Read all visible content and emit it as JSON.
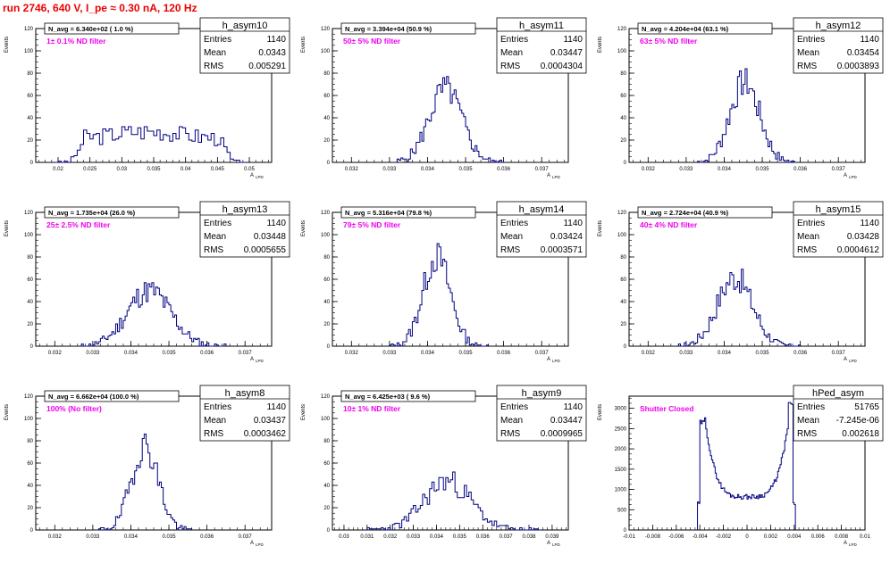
{
  "title": "run 2746,   640 V, I_pe ≈ 0.30 nA, 120 Hz",
  "y_axis_label": "Events",
  "x_axis_label": "A",
  "x_axis_label_sub": "LPD",
  "stats_labels": {
    "entries": "Entries",
    "mean": "Mean",
    "rms": "RMS"
  },
  "colors": {
    "histogram": "#000080",
    "annotation": "#ee00ee",
    "title": "#ee0000",
    "frame": "#000000"
  },
  "chart_data": [
    {
      "type": "bar",
      "name": "h_asym10",
      "n_avg": "N_avg = 6.340e+02 ( 1.0 %)",
      "filter": "1± 0.1% ND filter",
      "entries": "1140",
      "mean": "0.0343",
      "rms": "0.005291",
      "xlim": [
        0.0165,
        0.0535
      ],
      "ylim": [
        0,
        120
      ],
      "yticks": [
        0,
        20,
        40,
        60,
        80,
        100,
        120
      ],
      "xticks": [
        0.02,
        0.025,
        0.03,
        0.035,
        0.04,
        0.045,
        0.05
      ],
      "xtick_labels": [
        "0.02",
        "0.025",
        "0.03",
        "0.035",
        "0.04",
        "0.045",
        "0.05"
      ],
      "bins": {
        "x0": 0.0195,
        "x1": 0.0495,
        "step": 0.0005,
        "shape": "flat",
        "mu": 0.0343,
        "sigma": 0.0053,
        "peak": 28,
        "lo": 0.024,
        "hi": 0.0455,
        "seed": 3
      }
    },
    {
      "type": "bar",
      "name": "h_asym11",
      "n_avg": "N_avg = 3.394e+04 (50.9 %)",
      "filter": "50± 5% ND filter",
      "entries": "1140",
      "mean": "0.03447",
      "rms": "0.0004304",
      "xlim": [
        0.0315,
        0.0377
      ],
      "ylim": [
        0,
        120
      ],
      "yticks": [
        0,
        20,
        40,
        60,
        80,
        100,
        120
      ],
      "xticks": [
        0.032,
        0.033,
        0.034,
        0.035,
        0.036,
        0.037
      ],
      "xtick_labels": [
        "0.032",
        "0.033",
        "0.034",
        "0.035",
        "0.036",
        "0.037"
      ],
      "bins": {
        "x0": 0.0332,
        "x1": 0.036,
        "step": 5e-05,
        "shape": "gauss",
        "mu": 0.03447,
        "sigma": 0.00043,
        "peak": 66,
        "seed": 5
      }
    },
    {
      "type": "bar",
      "name": "h_asym12",
      "n_avg": "N_avg = 4.204e+04 (63.1 %)",
      "filter": "63± 5% ND filter",
      "entries": "1140",
      "mean": "0.03454",
      "rms": "0.0003893",
      "xlim": [
        0.0315,
        0.0377
      ],
      "ylim": [
        0,
        120
      ],
      "yticks": [
        0,
        20,
        40,
        60,
        80,
        100,
        120
      ],
      "xticks": [
        0.032,
        0.033,
        0.034,
        0.035,
        0.036,
        0.037
      ],
      "xtick_labels": [
        "0.032",
        "0.033",
        "0.034",
        "0.035",
        "0.036",
        "0.037"
      ],
      "bins": {
        "x0": 0.0333,
        "x1": 0.0359,
        "step": 5e-05,
        "shape": "gauss",
        "mu": 0.03454,
        "sigma": 0.00039,
        "peak": 72,
        "seed": 7
      }
    },
    {
      "type": "bar",
      "name": "h_asym13",
      "n_avg": "N_avg = 1.735e+04 (26.0 %)",
      "filter": "25± 2.5% ND filter",
      "entries": "1140",
      "mean": "0.03448",
      "rms": "0.0005655",
      "xlim": [
        0.0315,
        0.0377
      ],
      "ylim": [
        0,
        120
      ],
      "yticks": [
        0,
        20,
        40,
        60,
        80,
        100,
        120
      ],
      "xticks": [
        0.032,
        0.033,
        0.034,
        0.035,
        0.036,
        0.037
      ],
      "xtick_labels": [
        "0.032",
        "0.033",
        "0.034",
        "0.035",
        "0.036",
        "0.037"
      ],
      "bins": {
        "x0": 0.0327,
        "x1": 0.0365,
        "step": 5e-05,
        "shape": "gauss",
        "mu": 0.03448,
        "sigma": 0.00057,
        "peak": 50,
        "seed": 11
      }
    },
    {
      "type": "bar",
      "name": "h_asym14",
      "n_avg": "N_avg = 5.316e+04 (79.8 %)",
      "filter": "79± 5% ND filter",
      "entries": "1140",
      "mean": "0.03424",
      "rms": "0.0003571",
      "xlim": [
        0.0315,
        0.0377
      ],
      "ylim": [
        0,
        120
      ],
      "yticks": [
        0,
        20,
        40,
        60,
        80,
        100,
        120
      ],
      "xticks": [
        0.032,
        0.033,
        0.034,
        0.035,
        0.036,
        0.037
      ],
      "xtick_labels": [
        "0.032",
        "0.033",
        "0.034",
        "0.035",
        "0.036",
        "0.037"
      ],
      "bins": {
        "x0": 0.033,
        "x1": 0.0356,
        "step": 5e-05,
        "shape": "gauss",
        "mu": 0.03424,
        "sigma": 0.00036,
        "peak": 80,
        "seed": 13
      }
    },
    {
      "type": "bar",
      "name": "h_asym15",
      "n_avg": "N_avg = 2.724e+04 (40.9 %)",
      "filter": "40± 4% ND filter",
      "entries": "1140",
      "mean": "0.03428",
      "rms": "0.0004612",
      "xlim": [
        0.0315,
        0.0377
      ],
      "ylim": [
        0,
        120
      ],
      "yticks": [
        0,
        20,
        40,
        60,
        80,
        100,
        120
      ],
      "xticks": [
        0.032,
        0.033,
        0.034,
        0.035,
        0.036,
        0.037
      ],
      "xtick_labels": [
        "0.032",
        "0.033",
        "0.034",
        "0.035",
        "0.036",
        "0.037"
      ],
      "bins": {
        "x0": 0.0328,
        "x1": 0.036,
        "step": 5e-05,
        "shape": "gauss",
        "mu": 0.03428,
        "sigma": 0.00046,
        "peak": 62,
        "seed": 17
      }
    },
    {
      "type": "bar",
      "name": "h_asym8",
      "n_avg": "N_avg = 6.662e+04 (100.0 %)",
      "filter": "100% (No filter)",
      "entries": "1140",
      "mean": "0.03437",
      "rms": "0.0003462",
      "xlim": [
        0.0315,
        0.0377
      ],
      "ylim": [
        0,
        120
      ],
      "yticks": [
        0,
        20,
        40,
        60,
        80,
        100,
        120
      ],
      "xticks": [
        0.032,
        0.033,
        0.034,
        0.035,
        0.036,
        0.037
      ],
      "xtick_labels": [
        "0.032",
        "0.033",
        "0.034",
        "0.035",
        "0.036",
        "0.037"
      ],
      "bins": {
        "x0": 0.0331,
        "x1": 0.0356,
        "step": 5e-05,
        "shape": "gauss",
        "mu": 0.03437,
        "sigma": 0.00035,
        "peak": 76,
        "seed": 19
      }
    },
    {
      "type": "bar",
      "name": "h_asym9",
      "n_avg": "N_avg = 6.425e+03 ( 9.6 %)",
      "filter": "10± 1% ND filter",
      "entries": "1140",
      "mean": "0.03447",
      "rms": "0.0009965",
      "xlim": [
        0.0295,
        0.0397
      ],
      "ylim": [
        0,
        120
      ],
      "yticks": [
        0,
        20,
        40,
        60,
        80,
        100,
        120
      ],
      "xticks": [
        0.03,
        0.031,
        0.032,
        0.033,
        0.034,
        0.035,
        0.036,
        0.037,
        0.038,
        0.039
      ],
      "xtick_labels": [
        "0.03",
        "0.031",
        "0.032",
        "0.033",
        "0.034",
        "0.035",
        "0.036",
        "0.037",
        "0.038",
        "0.039"
      ],
      "bins": {
        "x0": 0.031,
        "x1": 0.0385,
        "step": 0.0001,
        "shape": "gauss",
        "mu": 0.03447,
        "sigma": 0.001,
        "peak": 44,
        "seed": 23
      }
    },
    {
      "type": "bar",
      "name": "hPed_asym",
      "n_avg": "",
      "filter": "Shutter Closed",
      "entries": "51765",
      "mean": "-7.245e-06",
      "rms": "0.002618",
      "xlim": [
        -0.01,
        0.01
      ],
      "ylim": [
        0,
        3300
      ],
      "yticks": [
        0,
        500,
        1000,
        1500,
        2000,
        2500,
        3000
      ],
      "xticks": [
        -0.01,
        -0.008,
        -0.006,
        -0.004,
        -0.002,
        0,
        0.002,
        0.004,
        0.006,
        0.008,
        0.01
      ],
      "xtick_labels": [
        "-0.01",
        "-0.008",
        "-0.006",
        "-0.004",
        "-0.002",
        "0",
        "0.002",
        "0.004",
        "0.006",
        "0.008",
        "0.01"
      ],
      "bins": {
        "x0": -0.0042,
        "x1": 0.0041,
        "step": 0.0001,
        "shape": "ped",
        "seed": 29
      }
    }
  ]
}
